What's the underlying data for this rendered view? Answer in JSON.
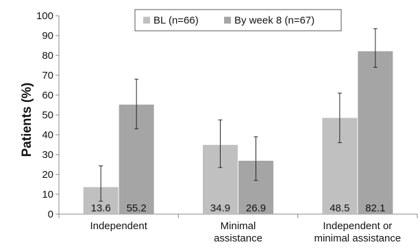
{
  "chart_data": {
    "type": "bar",
    "title": "",
    "xlabel": "",
    "ylabel": "Patients (%)",
    "ylim": [
      0,
      100
    ],
    "yticks": [
      0,
      10,
      20,
      30,
      40,
      50,
      60,
      70,
      80,
      90,
      100
    ],
    "grid": false,
    "legend_position": "top-center",
    "categories": [
      [
        "Independent"
      ],
      [
        "Minimal",
        "assistance"
      ],
      [
        "Independent or",
        "minimal assistance"
      ]
    ],
    "series": [
      {
        "name": "BL (n=66)",
        "color": "#c0c0c0",
        "values": [
          13.6,
          34.9,
          48.5
        ],
        "labels": [
          "13.6",
          "34.9",
          "48.5"
        ],
        "error_low": [
          6.5,
          23.5,
          36
        ],
        "error_high": [
          24.3,
          47.5,
          61
        ]
      },
      {
        "name": "By week 8 (n=67)",
        "color": "#a5a5a5",
        "values": [
          55.2,
          26.9,
          82.1
        ],
        "labels": [
          "55.2",
          "26.9",
          "82.1"
        ],
        "error_low": [
          43,
          17,
          74
        ],
        "error_high": [
          68,
          39,
          93.5
        ]
      }
    ]
  }
}
